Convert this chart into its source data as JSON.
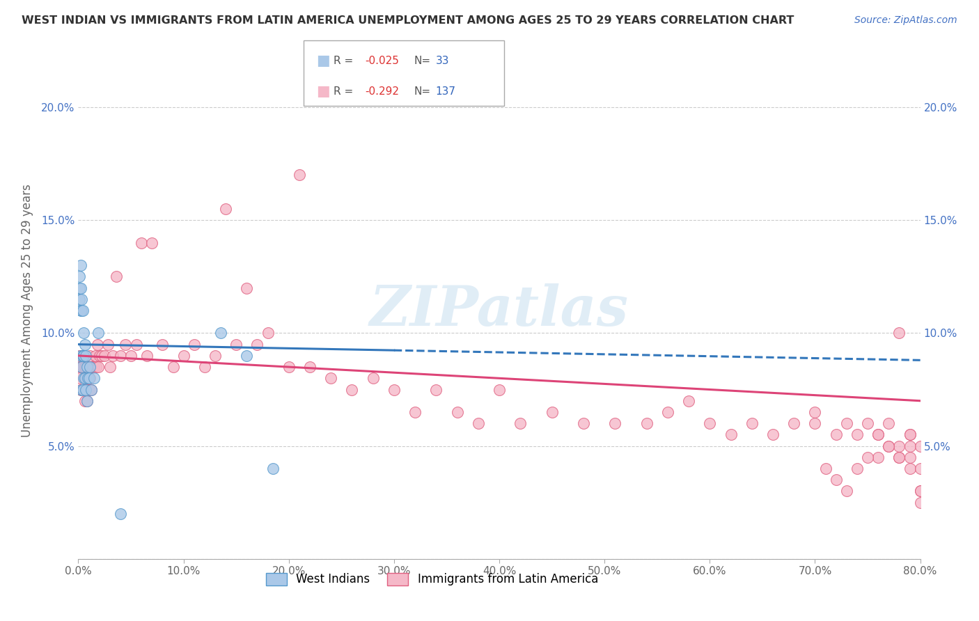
{
  "title": "WEST INDIAN VS IMMIGRANTS FROM LATIN AMERICA UNEMPLOYMENT AMONG AGES 25 TO 29 YEARS CORRELATION CHART",
  "source": "Source: ZipAtlas.com",
  "ylabel": "Unemployment Among Ages 25 to 29 years",
  "xlim": [
    0.0,
    0.8
  ],
  "ylim": [
    0.0,
    0.22
  ],
  "xticks": [
    0.0,
    0.1,
    0.2,
    0.3,
    0.4,
    0.5,
    0.6,
    0.7,
    0.8
  ],
  "xticklabels": [
    "0.0%",
    "10.0%",
    "20.0%",
    "30.0%",
    "40.0%",
    "50.0%",
    "60.0%",
    "70.0%",
    "80.0%"
  ],
  "yticks_left": [
    0.0,
    0.05,
    0.1,
    0.15,
    0.2
  ],
  "yticklabels_left": [
    "",
    "5.0%",
    "10.0%",
    "15.0%",
    "20.0%"
  ],
  "yticks_right": [
    0.05,
    0.1,
    0.15,
    0.2
  ],
  "yticklabels_right": [
    "5.0%",
    "10.0%",
    "15.0%",
    "20.0%"
  ],
  "legend_labels": [
    "West Indians",
    "Immigrants from Latin America"
  ],
  "watermark": "ZIPatlas",
  "blue_fill": "#aac8e8",
  "blue_edge": "#5599cc",
  "pink_fill": "#f5b8c8",
  "pink_edge": "#e06080",
  "blue_line_color": "#3377bb",
  "pink_line_color": "#dd4477",
  "wi_trend_start_y": 0.095,
  "wi_trend_end_y": 0.088,
  "la_trend_start_y": 0.09,
  "la_trend_end_y": 0.07,
  "west_indian_x": [
    0.001,
    0.001,
    0.001,
    0.002,
    0.002,
    0.002,
    0.002,
    0.003,
    0.003,
    0.003,
    0.003,
    0.004,
    0.004,
    0.004,
    0.005,
    0.005,
    0.005,
    0.006,
    0.006,
    0.007,
    0.007,
    0.008,
    0.008,
    0.009,
    0.01,
    0.011,
    0.012,
    0.015,
    0.019,
    0.04,
    0.135,
    0.16,
    0.185
  ],
  "west_indian_y": [
    0.125,
    0.12,
    0.115,
    0.13,
    0.12,
    0.11,
    0.09,
    0.115,
    0.11,
    0.085,
    0.075,
    0.11,
    0.09,
    0.075,
    0.1,
    0.09,
    0.08,
    0.095,
    0.08,
    0.09,
    0.075,
    0.085,
    0.07,
    0.08,
    0.08,
    0.085,
    0.075,
    0.08,
    0.1,
    0.02,
    0.1,
    0.09,
    0.04
  ],
  "latin_x": [
    0.001,
    0.001,
    0.002,
    0.002,
    0.003,
    0.003,
    0.003,
    0.004,
    0.004,
    0.004,
    0.005,
    0.005,
    0.005,
    0.006,
    0.006,
    0.006,
    0.007,
    0.007,
    0.007,
    0.008,
    0.008,
    0.008,
    0.009,
    0.009,
    0.01,
    0.01,
    0.011,
    0.011,
    0.012,
    0.012,
    0.013,
    0.014,
    0.015,
    0.016,
    0.017,
    0.018,
    0.019,
    0.02,
    0.022,
    0.025,
    0.028,
    0.03,
    0.033,
    0.036,
    0.04,
    0.045,
    0.05,
    0.055,
    0.06,
    0.065,
    0.07,
    0.08,
    0.09,
    0.1,
    0.11,
    0.12,
    0.13,
    0.14,
    0.15,
    0.16,
    0.17,
    0.18,
    0.2,
    0.21,
    0.22,
    0.24,
    0.26,
    0.28,
    0.3,
    0.32,
    0.34,
    0.36,
    0.38,
    0.4,
    0.42,
    0.45,
    0.48,
    0.51,
    0.54,
    0.56,
    0.58,
    0.6,
    0.62,
    0.64,
    0.66,
    0.68,
    0.7,
    0.72,
    0.73,
    0.74,
    0.75,
    0.76,
    0.76,
    0.77,
    0.77,
    0.78,
    0.78,
    0.78,
    0.79,
    0.79,
    0.79,
    0.79,
    0.8,
    0.8,
    0.8,
    0.8,
    0.8,
    0.79,
    0.78,
    0.77,
    0.76,
    0.75,
    0.74,
    0.73,
    0.72,
    0.71,
    0.7
  ],
  "latin_y": [
    0.09,
    0.08,
    0.085,
    0.075,
    0.09,
    0.085,
    0.075,
    0.09,
    0.085,
    0.075,
    0.09,
    0.085,
    0.075,
    0.085,
    0.08,
    0.07,
    0.085,
    0.08,
    0.075,
    0.085,
    0.08,
    0.07,
    0.085,
    0.075,
    0.085,
    0.075,
    0.09,
    0.08,
    0.085,
    0.075,
    0.085,
    0.085,
    0.085,
    0.09,
    0.085,
    0.095,
    0.085,
    0.09,
    0.09,
    0.09,
    0.095,
    0.085,
    0.09,
    0.125,
    0.09,
    0.095,
    0.09,
    0.095,
    0.14,
    0.09,
    0.14,
    0.095,
    0.085,
    0.09,
    0.095,
    0.085,
    0.09,
    0.155,
    0.095,
    0.12,
    0.095,
    0.1,
    0.085,
    0.17,
    0.085,
    0.08,
    0.075,
    0.08,
    0.075,
    0.065,
    0.075,
    0.065,
    0.06,
    0.075,
    0.06,
    0.065,
    0.06,
    0.06,
    0.06,
    0.065,
    0.07,
    0.06,
    0.055,
    0.06,
    0.055,
    0.06,
    0.065,
    0.055,
    0.06,
    0.055,
    0.06,
    0.045,
    0.055,
    0.05,
    0.06,
    0.05,
    0.045,
    0.1,
    0.055,
    0.05,
    0.04,
    0.045,
    0.04,
    0.03,
    0.025,
    0.03,
    0.05,
    0.055,
    0.045,
    0.05,
    0.055,
    0.045,
    0.04,
    0.03,
    0.035,
    0.04,
    0.06
  ]
}
